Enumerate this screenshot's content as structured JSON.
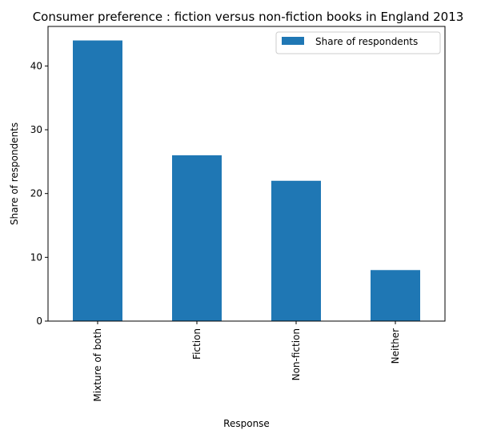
{
  "chart_data": {
    "type": "bar",
    "title": "Consumer preference : fiction versus non-fiction books in England 2013",
    "xlabel": "Response",
    "ylabel": "Share of respondents",
    "categories": [
      "Mixture of both",
      "Fiction",
      "Non-fiction",
      "Neither"
    ],
    "series": [
      {
        "name": "Share of respondents",
        "values": [
          44,
          26,
          22,
          8
        ],
        "color": "#1f77b4"
      }
    ],
    "ylim": [
      0,
      46.2
    ],
    "yticks": [
      0,
      10,
      20,
      30,
      40
    ],
    "ytick_labels": [
      "0",
      "10",
      "20",
      "30",
      "40"
    ],
    "x_tick_rotation": "vertical",
    "grid": false,
    "legend": {
      "position": "top-right"
    }
  }
}
